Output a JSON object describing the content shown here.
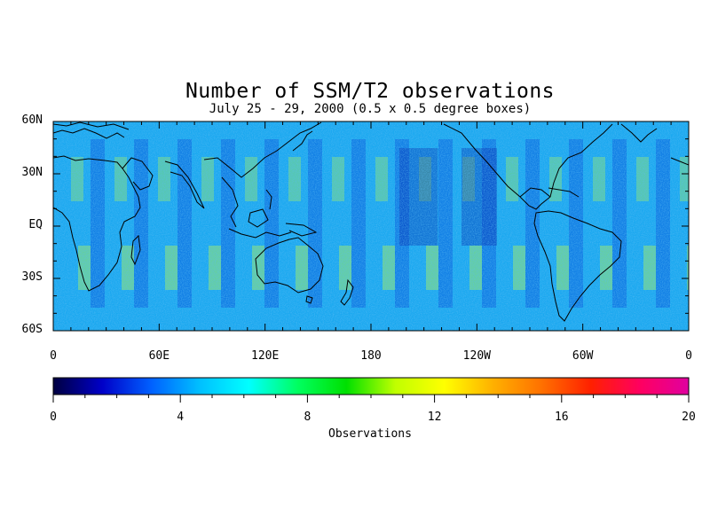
{
  "title": "Number of SSM/T2 observations",
  "subtitle": "July 25 - 29, 2000 (0.5 x 0.5 degree boxes)",
  "map": {
    "lat_ticks": [
      {
        "value": 60,
        "label": "60N"
      },
      {
        "value": 30,
        "label": "30N"
      },
      {
        "value": 0,
        "label": "EQ"
      },
      {
        "value": -30,
        "label": "30S"
      },
      {
        "value": -60,
        "label": "60S"
      }
    ],
    "lon_ticks": [
      {
        "value": 0,
        "label": "0"
      },
      {
        "value": 60,
        "label": "60E"
      },
      {
        "value": 120,
        "label": "120E"
      },
      {
        "value": 180,
        "label": "180"
      },
      {
        "value": 240,
        "label": "120W"
      },
      {
        "value": 300,
        "label": "60W"
      },
      {
        "value": 360,
        "label": "0"
      }
    ],
    "lon_range": [
      0,
      360
    ],
    "lat_range": [
      -60,
      60
    ],
    "projection": "cylindrical equidistant",
    "field": "observation count per 0.5x0.5 degree box"
  },
  "colorbar": {
    "label": "Observations",
    "range": [
      0,
      20
    ],
    "ticks": [
      {
        "value": 0,
        "label": "0"
      },
      {
        "value": 4,
        "label": "4"
      },
      {
        "value": 8,
        "label": "8"
      },
      {
        "value": 12,
        "label": "12"
      },
      {
        "value": 16,
        "label": "16"
      },
      {
        "value": 20,
        "label": "20"
      }
    ],
    "colors": [
      "#000040",
      "#0000c8",
      "#0060ff",
      "#00c0ff",
      "#00ffff",
      "#00ff60",
      "#00e000",
      "#c0ff00",
      "#ffff00",
      "#ffb000",
      "#ff7000",
      "#ff2000",
      "#ff0060",
      "#e000a0"
    ]
  },
  "colors": {
    "background": "#ffffff",
    "coastline": "#000000"
  }
}
